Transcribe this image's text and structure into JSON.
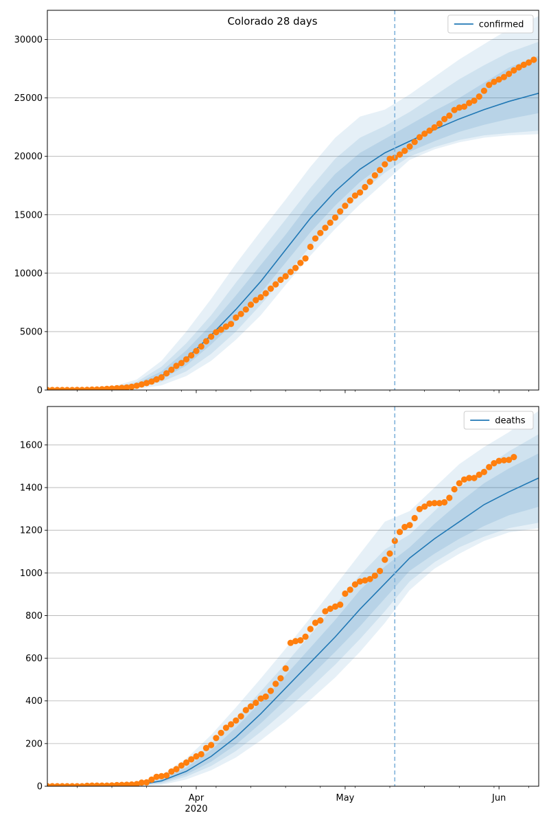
{
  "figure": {
    "title": "Colorado 28 days"
  },
  "colors": {
    "model_line": "#1f77b4",
    "band": "#1f77b4",
    "observed": "#ff7f0e",
    "grid": "#b0b0b0",
    "split_line": "#7fb2da"
  },
  "chart_data": [
    {
      "type": "line",
      "id": "confirmed",
      "legend": {
        "label": "confirmed",
        "position": "top-right"
      },
      "grid": "horizontal",
      "xlim": [
        "2020-03-02",
        "2020-06-09"
      ],
      "ylim": [
        0,
        32500
      ],
      "yticks": [
        0,
        5000,
        10000,
        15000,
        20000,
        25000,
        30000
      ],
      "xticks": [
        {
          "date": "2020-04-01",
          "label": "Apr",
          "sublabel": "2020"
        },
        {
          "date": "2020-05-01",
          "label": "May",
          "sublabel": ""
        },
        {
          "date": "2020-06-01",
          "label": "Jun",
          "sublabel": ""
        }
      ],
      "split_date": "2020-05-11",
      "model": {
        "x": [
          "2020-03-02",
          "2020-03-15",
          "2020-03-20",
          "2020-03-25",
          "2020-03-30",
          "2020-04-04",
          "2020-04-09",
          "2020-04-14",
          "2020-04-19",
          "2020-04-24",
          "2020-04-29",
          "2020-05-04",
          "2020-05-09",
          "2020-05-14",
          "2020-05-19",
          "2020-05-24",
          "2020-05-29",
          "2020-06-03",
          "2020-06-09"
        ],
        "median": [
          0,
          100,
          400,
          1200,
          2700,
          4700,
          6900,
          9300,
          12000,
          14700,
          17000,
          18900,
          20300,
          21300,
          22300,
          23200,
          24000,
          24700,
          25400
        ],
        "inner_low": [
          0,
          60,
          300,
          900,
          2100,
          3900,
          5900,
          8300,
          10900,
          13500,
          15800,
          17800,
          19400,
          20400,
          21300,
          22100,
          22700,
          23200,
          23700
        ],
        "inner_high": [
          0,
          150,
          550,
          1600,
          3400,
          5600,
          8100,
          10700,
          13300,
          16100,
          18500,
          20300,
          21500,
          22700,
          23900,
          25000,
          26300,
          27600,
          28600
        ],
        "mid_low": [
          0,
          30,
          200,
          700,
          1600,
          3100,
          5000,
          7300,
          9800,
          12300,
          14600,
          16800,
          18600,
          20000,
          20800,
          21400,
          21800,
          22000,
          22200
        ],
        "mid_high": [
          0,
          200,
          700,
          2000,
          4000,
          6400,
          9200,
          11900,
          14600,
          17300,
          19800,
          21600,
          22600,
          23800,
          25200,
          26600,
          27800,
          28900,
          29800
        ],
        "outer_low": [
          0,
          10,
          100,
          400,
          1200,
          2500,
          4300,
          6400,
          9000,
          11500,
          13800,
          15900,
          17800,
          19700,
          20600,
          21200,
          21600,
          21800,
          21900
        ],
        "outer_high": [
          0,
          280,
          900,
          2500,
          5000,
          7800,
          10800,
          13600,
          16300,
          19100,
          21600,
          23400,
          24000,
          25300,
          26800,
          28300,
          29600,
          30900,
          32000
        ]
      },
      "observed": {
        "x_start": "2020-03-02",
        "values": [
          0,
          0,
          0,
          0,
          0,
          2,
          3,
          8,
          15,
          33,
          45,
          72,
          101,
          131,
          160,
          183,
          216,
          277,
          363,
          475,
          591,
          720,
          912,
          1086,
          1430,
          1734,
          2061,
          2307,
          2627,
          2966,
          3342,
          3728,
          4173,
          4565,
          4950,
          5172,
          5429,
          5655,
          6202,
          6510,
          6893,
          7303,
          7691,
          7941,
          8280,
          8675,
          9047,
          9433,
          9730,
          10106,
          10447,
          10878,
          11262,
          12255,
          12968,
          13441,
          13879,
          14316,
          14758,
          15284,
          15768,
          16225,
          16635,
          16907,
          17364,
          17830,
          18371,
          18827,
          19316,
          19793,
          19879,
          20157,
          20475,
          20838,
          21232,
          21633,
          21938,
          22202,
          22482,
          22797,
          23191,
          23487,
          23964,
          24174,
          24256,
          24565,
          24767,
          25116,
          25613,
          26110,
          26378,
          26577,
          26788,
          27060,
          27360,
          27615,
          27834,
          28036,
          28266
        ]
      }
    },
    {
      "type": "line",
      "id": "deaths",
      "legend": {
        "label": "deaths",
        "position": "top-right"
      },
      "grid": "horizontal",
      "xlim": [
        "2020-03-02",
        "2020-06-09"
      ],
      "ylim": [
        0,
        1780
      ],
      "yticks": [
        0,
        200,
        400,
        600,
        800,
        1000,
        1200,
        1400,
        1600
      ],
      "xticks": [
        {
          "date": "2020-04-01",
          "label": "Apr",
          "sublabel": "2020"
        },
        {
          "date": "2020-05-01",
          "label": "May",
          "sublabel": ""
        },
        {
          "date": "2020-06-01",
          "label": "Jun",
          "sublabel": ""
        }
      ],
      "split_date": "2020-05-11",
      "model": {
        "x": [
          "2020-03-02",
          "2020-03-20",
          "2020-03-25",
          "2020-03-30",
          "2020-04-04",
          "2020-04-09",
          "2020-04-14",
          "2020-04-19",
          "2020-04-24",
          "2020-04-29",
          "2020-05-04",
          "2020-05-09",
          "2020-05-14",
          "2020-05-19",
          "2020-05-24",
          "2020-05-29",
          "2020-06-03",
          "2020-06-09"
        ],
        "median": [
          0,
          5,
          25,
          70,
          140,
          230,
          340,
          460,
          580,
          700,
          830,
          950,
          1070,
          1160,
          1240,
          1320,
          1380,
          1445
        ],
        "inner_low": [
          0,
          3,
          18,
          55,
          115,
          195,
          295,
          405,
          515,
          630,
          750,
          880,
          1010,
          1090,
          1160,
          1220,
          1270,
          1310
        ],
        "inner_high": [
          0,
          8,
          32,
          88,
          170,
          275,
          395,
          520,
          650,
          780,
          920,
          1030,
          1120,
          1230,
          1330,
          1420,
          1490,
          1560
        ],
        "mid_low": [
          0,
          2,
          12,
          45,
          95,
          165,
          255,
          355,
          460,
          570,
          690,
          820,
          960,
          1050,
          1120,
          1170,
          1210,
          1235
        ],
        "mid_high": [
          0,
          11,
          40,
          105,
          200,
          320,
          445,
          575,
          710,
          850,
          990,
          1110,
          1180,
          1290,
          1400,
          1490,
          1570,
          1650
        ],
        "outer_low": [
          0,
          1,
          6,
          32,
          75,
          135,
          215,
          305,
          405,
          510,
          630,
          765,
          920,
          1020,
          1090,
          1150,
          1190,
          1210
        ],
        "outer_high": [
          0,
          15,
          52,
          130,
          240,
          370,
          505,
          645,
          790,
          940,
          1090,
          1240,
          1290,
          1400,
          1510,
          1590,
          1660,
          1760
        ]
      },
      "observed": {
        "x_start": "2020-03-02",
        "values": [
          0,
          0,
          0,
          0,
          0,
          0,
          0,
          0,
          2,
          3,
          3,
          3,
          3,
          4,
          5,
          6,
          7,
          8,
          10,
          17,
          18,
          31,
          44,
          47,
          51,
          69,
          80,
          97,
          111,
          126,
          140,
          150,
          179,
          193,
          226,
          250,
          274,
          290,
          308,
          328,
          357,
          374,
          391,
          411,
          420,
          447,
          480,
          506,
          552,
          672,
          680,
          684,
          701,
          737,
          766,
          777,
          820,
          832,
          842,
          851,
          903,
          921,
          946,
          960,
          965,
          971,
          987,
          1009,
          1062,
          1091,
          1150,
          1192,
          1215,
          1224,
          1257,
          1299,
          1311,
          1325,
          1327,
          1327,
          1331,
          1352,
          1392,
          1420,
          1438,
          1445,
          1445,
          1460,
          1473,
          1496,
          1514,
          1525,
          1528,
          1530,
          1543
        ]
      }
    }
  ]
}
